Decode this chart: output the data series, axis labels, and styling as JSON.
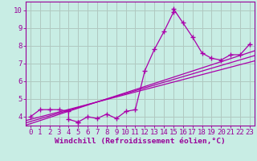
{
  "xlabel": "Windchill (Refroidissement éolien,°C)",
  "background_color": "#c8ede4",
  "grid_color": "#b0c8c0",
  "line_color": "#aa00aa",
  "spine_color": "#990099",
  "xlim": [
    -0.5,
    23.5
  ],
  "ylim": [
    3.5,
    10.5
  ],
  "xticks": [
    0,
    1,
    2,
    3,
    4,
    5,
    6,
    7,
    8,
    9,
    10,
    11,
    12,
    13,
    14,
    15,
    16,
    17,
    18,
    19,
    20,
    21,
    22,
    23
  ],
  "yticks": [
    4,
    5,
    6,
    7,
    8,
    9,
    10
  ],
  "scatter_x": [
    0,
    1,
    2,
    3,
    4,
    4,
    5,
    5,
    6,
    7,
    8,
    9,
    10,
    11,
    12,
    13,
    14,
    15,
    15,
    16,
    17,
    18,
    19,
    20,
    21,
    22,
    23
  ],
  "scatter_y": [
    4.0,
    4.4,
    4.4,
    4.4,
    4.3,
    3.85,
    3.7,
    3.7,
    4.0,
    3.9,
    4.15,
    3.9,
    4.3,
    4.4,
    6.6,
    7.8,
    8.8,
    9.9,
    10.1,
    9.3,
    8.5,
    7.6,
    7.3,
    7.2,
    7.5,
    7.5,
    8.1
  ],
  "reg_lines": [
    {
      "x": [
        -0.5,
        23.5
      ],
      "y": [
        3.78,
        7.15
      ]
    },
    {
      "x": [
        -0.5,
        23.5
      ],
      "y": [
        3.65,
        7.45
      ]
    },
    {
      "x": [
        -0.5,
        23.5
      ],
      "y": [
        3.52,
        7.72
      ]
    }
  ],
  "font_color": "#990099",
  "tick_fontsize": 6.5,
  "label_fontsize": 6.8
}
